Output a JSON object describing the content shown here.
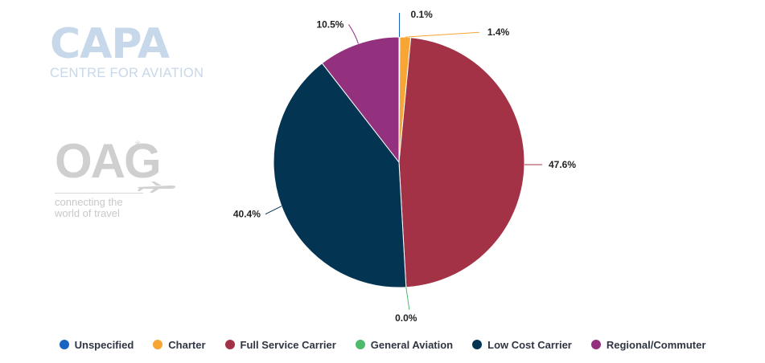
{
  "logos": {
    "capa": {
      "word": "CAPA",
      "tagline": "CENTRE FOR AVIATION"
    },
    "oag": {
      "word": "OAG",
      "tagline_line1": "connecting the",
      "tagline_line2": "world of travel"
    }
  },
  "chart_data": {
    "type": "pie",
    "title": "",
    "legend_position": "bottom",
    "start_angle_deg": 0,
    "direction": "clockwise",
    "series": [
      {
        "name": "Unspecified",
        "value": 0.1,
        "label": "0.1%",
        "color": "#1565c0"
      },
      {
        "name": "Charter",
        "value": 1.4,
        "label": "1.4%",
        "color": "#f7a534"
      },
      {
        "name": "Full Service Carrier",
        "value": 47.6,
        "label": "47.6%",
        "color": "#a33246"
      },
      {
        "name": "General Aviation",
        "value": 0.0,
        "label": "0.0%",
        "color": "#4cbb6c"
      },
      {
        "name": "Low Cost Carrier",
        "value": 40.4,
        "label": "40.4%",
        "color": "#033552"
      },
      {
        "name": "Regional/Commuter",
        "value": 10.5,
        "label": "10.5%",
        "color": "#93317f"
      }
    ]
  }
}
